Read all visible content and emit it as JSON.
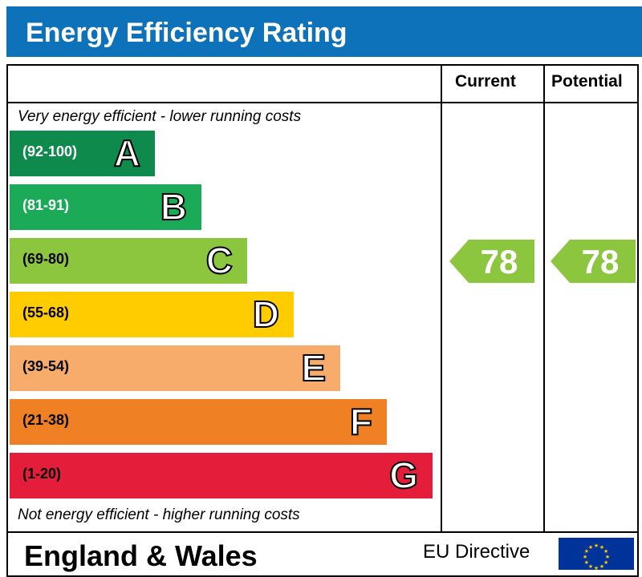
{
  "header": {
    "title": "Energy Efficiency Rating"
  },
  "columns": {
    "current": "Current",
    "potential": "Potential"
  },
  "captions": {
    "top": "Very energy efficient - lower running costs",
    "bottom": "Not energy efficient - higher running costs"
  },
  "footer": {
    "country": "England & Wales",
    "directive": "EU Directive"
  },
  "icons": {
    "flag": "eu-flag-icon"
  },
  "colors": {
    "title_bar": "#0d72b9",
    "band_A": "#0f8a4d",
    "band_B": "#1aaa58",
    "band_C": "#8cc63f",
    "band_D": "#ffcc00",
    "band_E": "#f7ac6c",
    "band_F": "#ef8023",
    "band_G": "#e41d3b",
    "rating_arrow": "#8cc63f",
    "eu_flag": "#003399"
  },
  "chart_data": {
    "type": "bar",
    "title": "Energy Efficiency Rating",
    "categories": [
      "A",
      "B",
      "C",
      "D",
      "E",
      "F",
      "G"
    ],
    "bands": [
      {
        "letter": "A",
        "range": "(92-100)",
        "min": 92,
        "max": 100,
        "color": "#0f8a4d"
      },
      {
        "letter": "B",
        "range": "(81-91)",
        "min": 81,
        "max": 91,
        "color": "#1aaa58"
      },
      {
        "letter": "C",
        "range": "(69-80)",
        "min": 69,
        "max": 80,
        "color": "#8cc63f"
      },
      {
        "letter": "D",
        "range": "(55-68)",
        "min": 55,
        "max": 68,
        "color": "#ffcc00"
      },
      {
        "letter": "E",
        "range": "(39-54)",
        "min": 39,
        "max": 54,
        "color": "#f7ac6c"
      },
      {
        "letter": "F",
        "range": "(21-38)",
        "min": 21,
        "max": 38,
        "color": "#ef8023"
      },
      {
        "letter": "G",
        "range": "(1-20)",
        "min": 1,
        "max": 20,
        "color": "#e41d3b"
      }
    ],
    "series": [
      {
        "name": "Current",
        "value": 78,
        "band": "C"
      },
      {
        "name": "Potential",
        "value": 78,
        "band": "C"
      }
    ]
  }
}
